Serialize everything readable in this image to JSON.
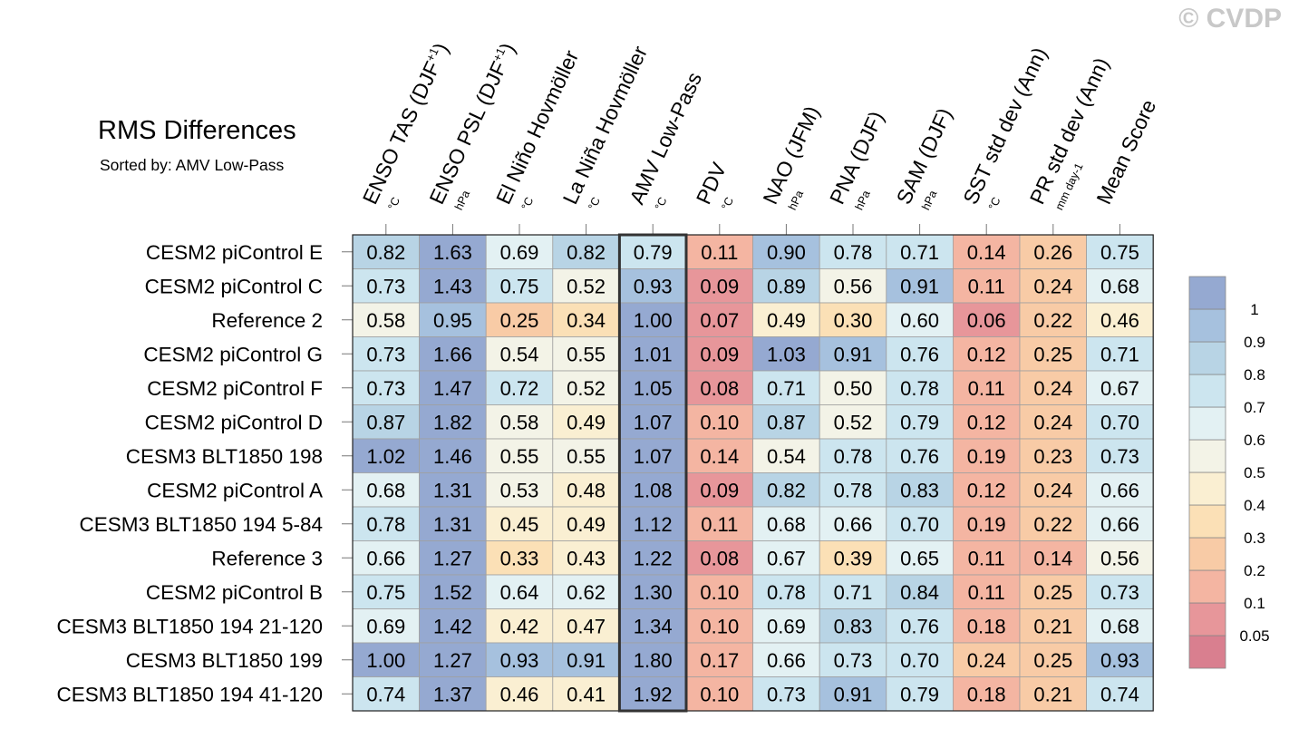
{
  "watermark": "© CVDP",
  "chart_data": {
    "type": "heatmap",
    "title": "RMS Differences",
    "subtitle": "Sorted by: AMV Low-Pass",
    "highlight_column": 4,
    "columns": [
      {
        "name": "ENSO TAS (DJF",
        "sup": "+1",
        "close": ")",
        "unit": "°C"
      },
      {
        "name": "ENSO PSL (DJF",
        "sup": "+1",
        "close": ")",
        "unit": "hPa"
      },
      {
        "name": "El Niño Hovmöller",
        "sup": "",
        "close": "",
        "unit": "°C"
      },
      {
        "name": "La Niña Hovmöller",
        "sup": "",
        "close": "",
        "unit": "°C"
      },
      {
        "name": "AMV Low-Pass",
        "sup": "",
        "close": "",
        "unit": "°C"
      },
      {
        "name": "PDV",
        "sup": "",
        "close": "",
        "unit": "°C"
      },
      {
        "name": "NAO (JFM)",
        "sup": "",
        "close": "",
        "unit": "hPa"
      },
      {
        "name": "PNA (DJF)",
        "sup": "",
        "close": "",
        "unit": "hPa"
      },
      {
        "name": "SAM (DJF)",
        "sup": "",
        "close": "",
        "unit": "hPa"
      },
      {
        "name": "SST std dev (Ann)",
        "sup": "",
        "close": "",
        "unit": "°C"
      },
      {
        "name": "PR std dev (Ann)",
        "sup": "",
        "close": "",
        "unit": "mm day-1"
      },
      {
        "name": "Mean Score",
        "sup": "",
        "close": "",
        "unit": ""
      }
    ],
    "rows": [
      {
        "name": "CESM2 piControl E",
        "values": [
          "0.82",
          "1.63",
          "0.69",
          "0.82",
          "0.79",
          "0.11",
          "0.90",
          "0.78",
          "0.71",
          "0.14",
          "0.26",
          "0.75"
        ]
      },
      {
        "name": "CESM2 piControl C",
        "values": [
          "0.73",
          "1.43",
          "0.75",
          "0.52",
          "0.93",
          "0.09",
          "0.89",
          "0.56",
          "0.91",
          "0.11",
          "0.24",
          "0.68"
        ]
      },
      {
        "name": "Reference 2",
        "values": [
          "0.58",
          "0.95",
          "0.25",
          "0.34",
          "1.00",
          "0.07",
          "0.49",
          "0.30",
          "0.60",
          "0.06",
          "0.22",
          "0.46"
        ]
      },
      {
        "name": "CESM2 piControl G",
        "values": [
          "0.73",
          "1.66",
          "0.54",
          "0.55",
          "1.01",
          "0.09",
          "1.03",
          "0.91",
          "0.76",
          "0.12",
          "0.25",
          "0.71"
        ]
      },
      {
        "name": "CESM2 piControl F",
        "values": [
          "0.73",
          "1.47",
          "0.72",
          "0.52",
          "1.05",
          "0.08",
          "0.71",
          "0.50",
          "0.78",
          "0.11",
          "0.24",
          "0.67"
        ]
      },
      {
        "name": "CESM2 piControl D",
        "values": [
          "0.87",
          "1.82",
          "0.58",
          "0.49",
          "1.07",
          "0.10",
          "0.87",
          "0.52",
          "0.79",
          "0.12",
          "0.24",
          "0.70"
        ]
      },
      {
        "name": "CESM3 BLT1850 198",
        "values": [
          "1.02",
          "1.46",
          "0.55",
          "0.55",
          "1.07",
          "0.14",
          "0.54",
          "0.78",
          "0.76",
          "0.19",
          "0.23",
          "0.73"
        ]
      },
      {
        "name": "CESM2 piControl A",
        "values": [
          "0.68",
          "1.31",
          "0.53",
          "0.48",
          "1.08",
          "0.09",
          "0.82",
          "0.78",
          "0.83",
          "0.12",
          "0.24",
          "0.66"
        ]
      },
      {
        "name": "CESM3 BLT1850 194 5-84",
        "values": [
          "0.78",
          "1.31",
          "0.45",
          "0.49",
          "1.12",
          "0.11",
          "0.68",
          "0.66",
          "0.70",
          "0.19",
          "0.22",
          "0.66"
        ]
      },
      {
        "name": "Reference 3",
        "values": [
          "0.66",
          "1.27",
          "0.33",
          "0.43",
          "1.22",
          "0.08",
          "0.67",
          "0.39",
          "0.65",
          "0.11",
          "0.14",
          "0.56"
        ]
      },
      {
        "name": "CESM2 piControl B",
        "values": [
          "0.75",
          "1.52",
          "0.64",
          "0.62",
          "1.30",
          "0.10",
          "0.78",
          "0.71",
          "0.84",
          "0.11",
          "0.25",
          "0.73"
        ]
      },
      {
        "name": "CESM3 BLT1850 194 21-120",
        "values": [
          "0.69",
          "1.42",
          "0.42",
          "0.47",
          "1.34",
          "0.10",
          "0.69",
          "0.83",
          "0.76",
          "0.18",
          "0.21",
          "0.68"
        ]
      },
      {
        "name": "CESM3 BLT1850 199",
        "values": [
          "1.00",
          "1.27",
          "0.93",
          "0.91",
          "1.80",
          "0.17",
          "0.66",
          "0.73",
          "0.70",
          "0.24",
          "0.25",
          "0.93"
        ]
      },
      {
        "name": "CESM3 BLT1850 194 41-120",
        "values": [
          "0.74",
          "1.37",
          "0.46",
          "0.41",
          "1.92",
          "0.10",
          "0.73",
          "0.91",
          "0.79",
          "0.18",
          "0.21",
          "0.74"
        ]
      }
    ],
    "colorbar": {
      "levels": [
        "0.05",
        "0.1",
        "0.2",
        "0.3",
        "0.4",
        "0.5",
        "0.6",
        "0.7",
        "0.8",
        "0.9",
        "1"
      ],
      "thresholds": [
        0.05,
        0.1,
        0.2,
        0.3,
        0.4,
        0.5,
        0.6,
        0.7,
        0.8,
        0.9,
        1.0
      ],
      "colors": [
        "#d97f8f",
        "#e7969a",
        "#f4b5a2",
        "#f8cba6",
        "#fbe0b6",
        "#faefd2",
        "#f3f3e7",
        "#e3f1f3",
        "#cce5ef",
        "#b8d4e5",
        "#a6c1de",
        "#95a9d1"
      ]
    }
  }
}
